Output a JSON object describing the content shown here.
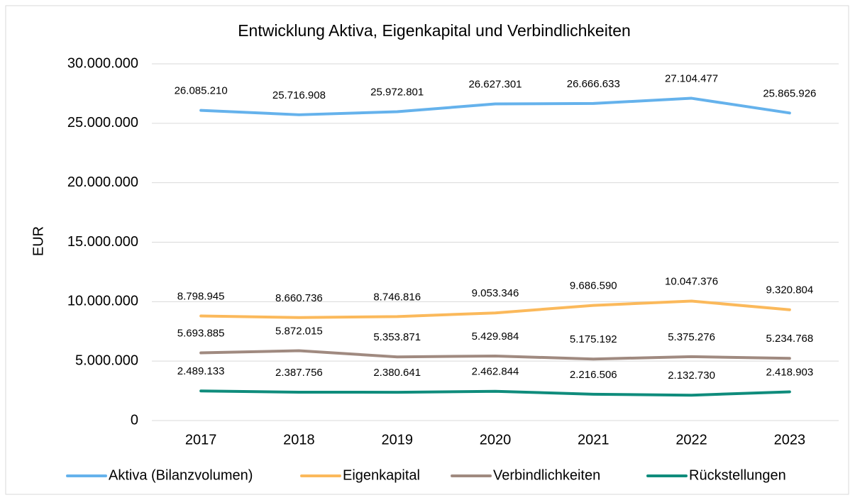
{
  "chart_data": {
    "type": "line",
    "title": "Entwicklung Aktiva, Eigenkapital und Verbindlichkeiten",
    "y_label": "EUR",
    "categories": [
      "2017",
      "2018",
      "2019",
      "2020",
      "2021",
      "2022",
      "2023"
    ],
    "series": [
      {
        "name": "Aktiva (Bilanzvolumen)",
        "color": "#65b2ec",
        "values": [
          26085210,
          25716908,
          25972801,
          26627301,
          26666633,
          27104477,
          25865926
        ],
        "value_labels": [
          "26.085.210",
          "25.716.908",
          "25.972.801",
          "26.627.301",
          "26.666.633",
          "27.104.477",
          "25.865.926"
        ]
      },
      {
        "name": "Eigenkapital",
        "color": "#fbb95b",
        "values": [
          8798945,
          8660736,
          8746816,
          9053346,
          9686590,
          10047376,
          9320804
        ],
        "value_labels": [
          "8.798.945",
          "8.660.736",
          "8.746.816",
          "9.053.346",
          "9.686.590",
          "10.047.376",
          "9.320.804"
        ]
      },
      {
        "name": "Verbindlichkeiten",
        "color": "#a08a80",
        "values": [
          5693885,
          5872015,
          5353871,
          5429984,
          5175192,
          5375276,
          5234768
        ],
        "value_labels": [
          "5.693.885",
          "5.872.015",
          "5.353.871",
          "5.429.984",
          "5.175.192",
          "5.375.276",
          "5.234.768"
        ]
      },
      {
        "name": "Rückstellungen",
        "color": "#0f8c7c",
        "values": [
          2489133,
          2387756,
          2380641,
          2462844,
          2216506,
          2132730,
          2418903
        ],
        "value_labels": [
          "2.489.133",
          "2.387.756",
          "2.380.641",
          "2.462.844",
          "2.216.506",
          "2.132.730",
          "2.418.903"
        ]
      }
    ],
    "ylim": [
      0,
      30000000
    ],
    "yticks": [
      0,
      {
        "value": 5000000,
        "label": "5.000.000"
      },
      {
        "value": 10000000,
        "label": "10.000.000"
      },
      {
        "value": 15000000,
        "label": "15.000.000"
      },
      {
        "value": 20000000,
        "label": "20.000.000"
      },
      {
        "value": 25000000,
        "label": "25.000.000"
      },
      {
        "value": 30000000,
        "label": "30.000.000"
      }
    ],
    "grid": true,
    "legend": "bottom"
  }
}
